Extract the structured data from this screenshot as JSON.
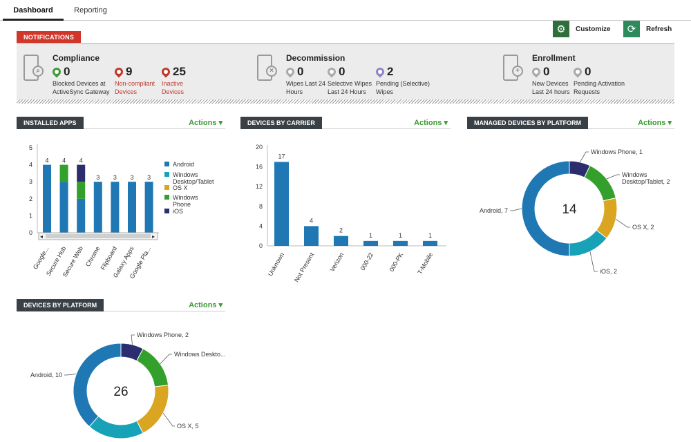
{
  "tabs": [
    {
      "label": "Dashboard",
      "active": true
    },
    {
      "label": "Reporting",
      "active": false
    }
  ],
  "toolbar": {
    "customize_label": "Customize",
    "customize_icon": "gear-icon",
    "refresh_label": "Refresh",
    "refresh_icon": "refresh-icon",
    "color": "#2d8a5b"
  },
  "notifications": {
    "header": "NOTIFICATIONS",
    "groups": [
      {
        "title": "Compliance",
        "icon": "phone-search-icon",
        "stats": [
          {
            "value": "0",
            "desc": [
              "Blocked Devices at",
              "ActiveSync Gateway"
            ],
            "pin_color": "#3c9a35",
            "red": false
          },
          {
            "value": "9",
            "desc": [
              "Non-compliant",
              "Devices"
            ],
            "pin_color": "#c0392b",
            "red": true
          },
          {
            "value": "25",
            "desc": [
              "Inactive",
              "Devices"
            ],
            "pin_color": "#c0392b",
            "red": true
          }
        ]
      },
      {
        "title": "Decommission",
        "icon": "phone-wipe-icon",
        "stats": [
          {
            "value": "0",
            "desc": [
              "Wipes Last 24",
              "Hours"
            ],
            "pin_color": "#aaaaaa",
            "red": false
          },
          {
            "value": "0",
            "desc": [
              "Selective Wipes",
              "Last 24 Hours"
            ],
            "pin_color": "#aaaaaa",
            "red": false
          },
          {
            "value": "2",
            "desc": [
              "Pending (Selective)",
              "Wipes"
            ],
            "pin_color": "#8e86c9",
            "red": false
          }
        ]
      },
      {
        "title": "Enrollment",
        "icon": "phone-add-icon",
        "stats": [
          {
            "value": "0",
            "desc": [
              "New Devices",
              "Last 24 hours"
            ],
            "pin_color": "#aaaaaa",
            "red": false
          },
          {
            "value": "0",
            "desc": [
              "Pending Activation",
              "Requests"
            ],
            "pin_color": "#aaaaaa",
            "red": false
          }
        ]
      }
    ]
  },
  "sections": {
    "installed_apps": "INSTALLED APPS",
    "devices_by_carrier": "DEVICES BY CARRIER",
    "managed_by_platform": "MANAGED DEVICES BY PLATFORM",
    "devices_by_platform": "DEVICES BY PLATFORM",
    "actions_label": "Actions"
  },
  "chart_data": [
    {
      "type": "bar",
      "stacked": true,
      "categories": [
        "Google...",
        "Secure Hub",
        "Secure Web",
        "Chrome",
        "Flipboard",
        "Galaxy Apps",
        "Google Pla..."
      ],
      "totals": [
        4,
        4,
        4,
        3,
        3,
        3,
        3
      ],
      "series": [
        {
          "name": "Android",
          "color": "#1f78b4",
          "values": [
            4,
            3,
            2,
            3,
            3,
            3,
            3
          ]
        },
        {
          "name": "Windows Desktop/Tablet",
          "color": "#17a2b8",
          "values": [
            0,
            0,
            0,
            0,
            0,
            0,
            0
          ]
        },
        {
          "name": "OS X",
          "color": "#daa520",
          "values": [
            0,
            0,
            0,
            0,
            0,
            0,
            0
          ]
        },
        {
          "name": "Windows Phone",
          "color": "#33a02c",
          "values": [
            0,
            1,
            1,
            0,
            0,
            0,
            0
          ]
        },
        {
          "name": "iOS",
          "color": "#2b2d6e",
          "values": [
            0,
            0,
            1,
            0,
            0,
            0,
            0
          ]
        }
      ],
      "legend": [
        "Android",
        "Windows",
        "Desktop/Tablet",
        "OS X",
        "Windows",
        "Phone",
        "iOS"
      ],
      "yticks": [
        "5",
        "4",
        "3",
        "2",
        "1",
        "0"
      ],
      "ylim": [
        0,
        5
      ]
    },
    {
      "type": "bar",
      "categories": [
        "Unknown",
        "Not Present",
        "Verizon",
        "000-22",
        "000-PK",
        "T-Mobile"
      ],
      "values": [
        17,
        4,
        2,
        1,
        1,
        1
      ],
      "yticks": [
        "20",
        "16",
        "12",
        "8",
        "4",
        "0"
      ],
      "ylim": [
        0,
        20
      ],
      "color": "#1f78b4"
    },
    {
      "type": "pie",
      "center_label": "14",
      "slices": [
        {
          "label": "Windows Phone, 1",
          "value": 1,
          "color": "#2b2d6e"
        },
        {
          "label": "Windows Desktop/Tablet, 2",
          "value": 2,
          "color": "#33a02c"
        },
        {
          "label": "OS X, 2",
          "value": 2,
          "color": "#daa520"
        },
        {
          "label": "iOS, 2",
          "value": 2,
          "color": "#17a2b8"
        },
        {
          "label": "Android, 7",
          "value": 7,
          "color": "#1f78b4"
        }
      ]
    },
    {
      "type": "pie",
      "center_label": "26",
      "slices": [
        {
          "label": "Windows Phone, 2",
          "value": 2,
          "color": "#2b2d6e"
        },
        {
          "label": "Windows Deskto...",
          "value": 4,
          "color": "#33a02c"
        },
        {
          "label": "OS X, 5",
          "value": 5,
          "color": "#daa520"
        },
        {
          "label": "",
          "value": 5,
          "color": "#17a2b8"
        },
        {
          "label": "Android, 10",
          "value": 10,
          "color": "#1f78b4"
        }
      ]
    }
  ]
}
